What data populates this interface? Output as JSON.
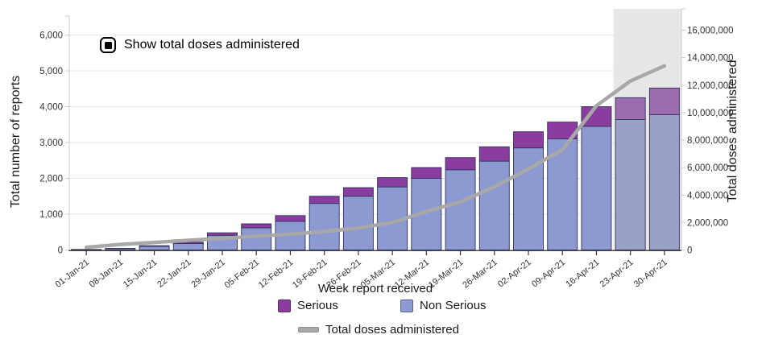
{
  "controls": {
    "show_doses_toggle": {
      "label": "Show total doses administered",
      "checked": true
    }
  },
  "colors": {
    "serious": "#8a3d9f",
    "non_serious": "#8d9ad2",
    "serious_muted": "#9d6cae",
    "non_serious_muted": "#99a2c6",
    "line": "#a8a8a8",
    "band": "#e7e7e7",
    "grid": "#e6e6e6",
    "axis_line": "#cccccc",
    "x_axis_line": "#333333",
    "bar_border": "#32325a",
    "tick_text": "#333333"
  },
  "chart_data": {
    "type": "bar",
    "stacked": true,
    "title": "",
    "xlabel": "Week report received",
    "categories": [
      "01-Jan-21",
      "08-Jan-21",
      "15-Jan-21",
      "22-Jan-21",
      "29-Jan-21",
      "05-Feb-21",
      "12-Feb-21",
      "19-Feb-21",
      "26-Feb-21",
      "05-Mar-21",
      "12-Mar-21",
      "19-Mar-21",
      "26-Mar-21",
      "02-Apr-21",
      "09-Apr-21",
      "16-Apr-21",
      "23-Apr-21",
      "30-Apr-21"
    ],
    "series": [
      {
        "name": "Non Serious",
        "type": "bar",
        "stack": "reports",
        "yaxis": "left",
        "values": [
          13,
          38,
          100,
          180,
          410,
          620,
          800,
          1300,
          1500,
          1760,
          2000,
          2240,
          2480,
          2850,
          3100,
          3450,
          3640,
          3780
        ]
      },
      {
        "name": "Serious",
        "type": "bar",
        "stack": "reports",
        "yaxis": "left",
        "values": [
          2,
          7,
          20,
          40,
          70,
          110,
          160,
          200,
          240,
          260,
          300,
          340,
          400,
          450,
          470,
          550,
          610,
          740
        ]
      },
      {
        "name": "Total doses administered",
        "type": "line",
        "yaxis": "right",
        "values": [
          200000,
          400000,
          550000,
          700000,
          850000,
          1000000,
          1150000,
          1350000,
          1600000,
          2000000,
          2800000,
          3500000,
          4600000,
          5900000,
          7300000,
          10500000,
          12300000,
          13400000
        ]
      }
    ],
    "yaxis_left": {
      "label": "Total number of reports",
      "lim": [
        0,
        6700
      ],
      "tick_values": [
        0,
        1000,
        2000,
        3000,
        4000,
        5000,
        6000
      ],
      "tick_labels": [
        "0",
        "1,000",
        "2,000",
        "3,000",
        "4,000",
        "5,000",
        "6,000"
      ]
    },
    "yaxis_right": {
      "label": "Total doses administered",
      "lim": [
        0,
        17550
      ],
      "tick_values": [
        0,
        2000000,
        4000000,
        6000000,
        8000000,
        10000000,
        12000000,
        14000000,
        16000000
      ],
      "tick_labels": [
        "0",
        "2,000,000",
        "4,000,000",
        "6,000,000",
        "8,000,000",
        "10,000,000",
        "12,000,000",
        "14,000,000",
        "16,000,000"
      ]
    },
    "highlight_band": {
      "categories": [
        "23-Apr-21",
        "30-Apr-21"
      ]
    },
    "grid": true,
    "legend_position": "bottom"
  }
}
